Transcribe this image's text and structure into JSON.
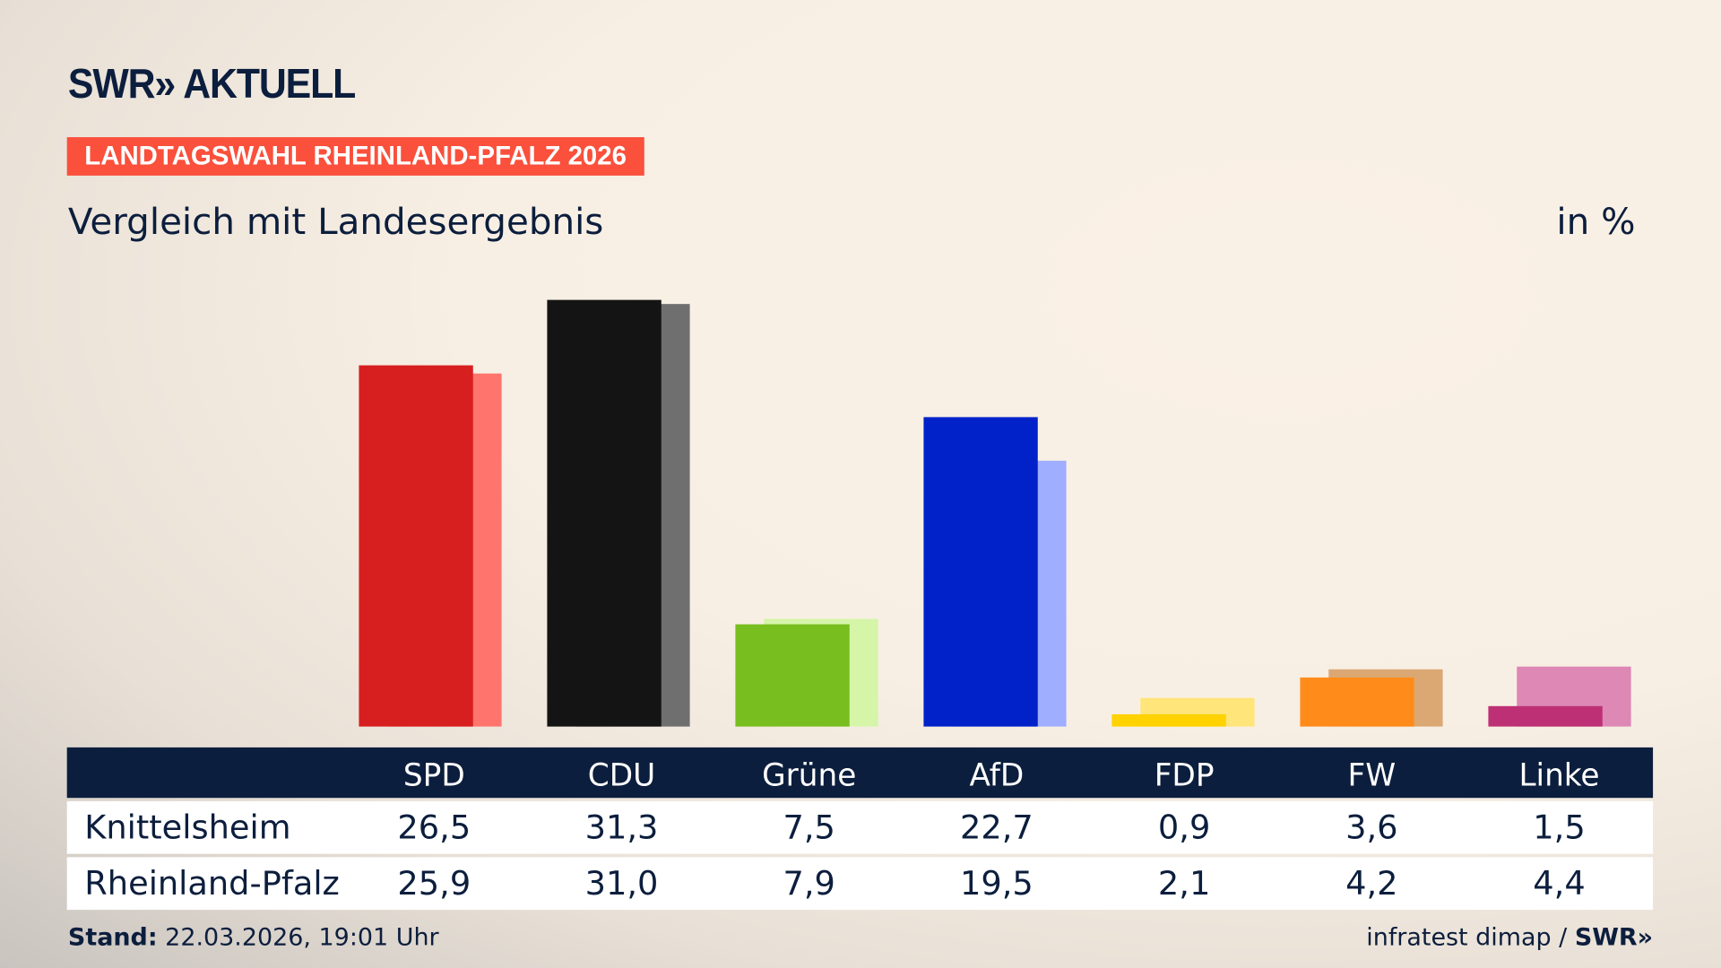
{
  "brand": "SWR» AKTUELL",
  "tag": "LANDTAGSWAHL RHEINLAND-PFALZ 2026",
  "subtitle": "Vergleich mit Landesergebnis",
  "unit": "in %",
  "footer": {
    "stand_label": "Stand:",
    "stand_value": " 22.03.2026, 19:01 Uhr",
    "source": "infratest dimap / ",
    "source_logo": "SWR»"
  },
  "chart_data": {
    "type": "bar",
    "categories": [
      "SPD",
      "CDU",
      "Grüne",
      "AfD",
      "FDP",
      "FW",
      "Linke"
    ],
    "series": [
      {
        "name": "Knittelsheim",
        "values": [
          26.5,
          31.3,
          7.5,
          22.7,
          0.9,
          3.6,
          1.5
        ],
        "display": [
          "26,5",
          "31,3",
          "7,5",
          "22,7",
          "0,9",
          "3,6",
          "1,5"
        ]
      },
      {
        "name": "Rheinland-Pfalz",
        "values": [
          25.9,
          31.0,
          7.9,
          19.5,
          2.1,
          4.2,
          4.4
        ],
        "display": [
          "25,9",
          "31,0",
          "7,9",
          "19,5",
          "2,1",
          "4,2",
          "4,4"
        ]
      }
    ],
    "colors": {
      "main": [
        "#d71f1f",
        "#141414",
        "#78be1e",
        "#0022c8",
        "#ffd200",
        "#ff8c1a",
        "#be3075"
      ],
      "light": [
        "#ff756e",
        "#6f6f6f",
        "#d5f5a8",
        "#9faeff",
        "#ffe57a",
        "#dba874",
        "#dd88b5"
      ]
    },
    "ylim": [
      0,
      31.3
    ],
    "grid": false
  }
}
